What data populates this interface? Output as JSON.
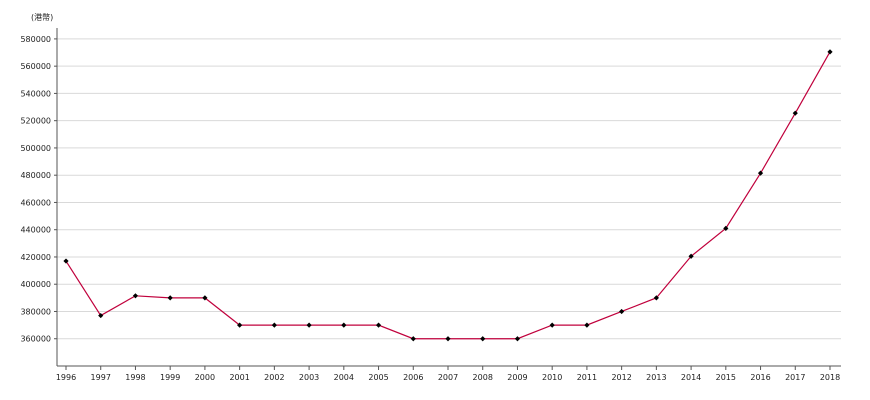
{
  "chart_data": {
    "type": "line",
    "title": "",
    "xlabel": "",
    "ylabel": "(港幣)",
    "x": [
      "1996",
      "1997",
      "1998",
      "1999",
      "2000",
      "2001",
      "2002",
      "2003",
      "2004",
      "2005",
      "2006",
      "2007",
      "2008",
      "2009",
      "2010",
      "2011",
      "2012",
      "2013",
      "2014",
      "2015",
      "2016",
      "2017",
      "2018"
    ],
    "series": [
      {
        "values": [
          417000,
          377000,
          391500,
          390000,
          390000,
          370000,
          370000,
          370000,
          370000,
          370000,
          360000,
          360000,
          360000,
          360000,
          370000,
          370000,
          380000,
          390000,
          420500,
          441000,
          481500,
          525500,
          570500
        ]
      }
    ],
    "ylim": [
      340000,
      588000
    ],
    "yticks": [
      360000,
      380000,
      400000,
      420000,
      440000,
      460000,
      480000,
      500000,
      520000,
      540000,
      560000,
      580000
    ],
    "grid": "horizontal",
    "legend": "none",
    "colors": {
      "line": "#c0003c",
      "marker": "#000000",
      "grid": "#d9d9d9",
      "axis": "#555555"
    }
  }
}
